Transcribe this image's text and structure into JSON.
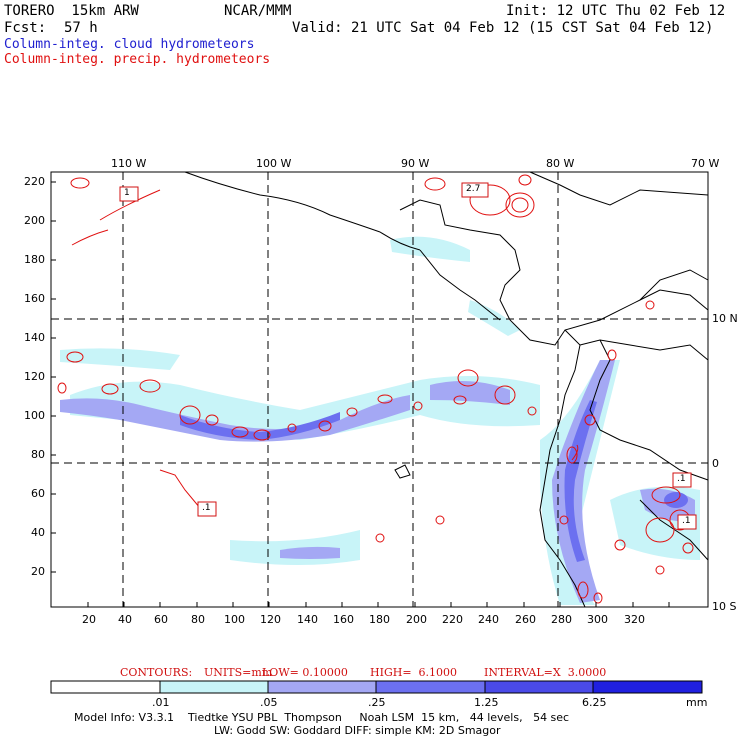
{
  "header": {
    "model": "TORERO  15km ARW",
    "org": "NCAR/MMM",
    "init": "Init: 12 UTC Thu 02 Feb 12",
    "fcst_label": "Fcst:",
    "fcst_value": "57 h",
    "valid": "Valid: 21 UTC Sat 04 Feb 12 (15 CST Sat 04 Feb 12)"
  },
  "legend": {
    "cloud": "Column-integ. cloud hydrometeors",
    "precip": "Column-integ. precip. hydrometeors",
    "cloud_color": "#2020d0",
    "precip_color": "#e01010"
  },
  "top_ticks": [
    "110 W",
    "100 W",
    "90 W",
    "80 W",
    "70 W"
  ],
  "right_ticks": [
    "10 N",
    "0",
    "10 S"
  ],
  "left_ticks": [
    "220",
    "200",
    "180",
    "160",
    "140",
    "120",
    "100",
    "80",
    "60",
    "40",
    "20"
  ],
  "bottom_ticks": [
    "20",
    "40",
    "60",
    "80",
    "100",
    "120",
    "140",
    "160",
    "180",
    "200",
    "220",
    "240",
    "260",
    "280",
    "300",
    "320"
  ],
  "contour_labels": [
    "1",
    "2.7",
    ".1",
    ".1",
    ".1"
  ],
  "contours_line": {
    "label": "CONTOURS:",
    "units": "UNITS=mm",
    "low": "LOW= 0.10000",
    "high": "HIGH=  6.1000",
    "interval": "INTERVAL=X  3.0000"
  },
  "colorbar": {
    "labels": [
      ".01",
      ".05",
      ".25",
      "1.25",
      "6.25"
    ],
    "unit": "mm",
    "colors": [
      "#ffffff",
      "#c8f4f8",
      "#a4a8f4",
      "#6c70f0",
      "#4a4ae8",
      "#2020e0"
    ]
  },
  "footer": {
    "line1": "Model Info: V3.3.1    Tiedtke YSU PBL  Thompson     Noah LSM  15 km,   44 levels,   54 sec",
    "line2": "LW: Godd SW: Goddard DIFF: simple KM: 2D Smagor"
  }
}
